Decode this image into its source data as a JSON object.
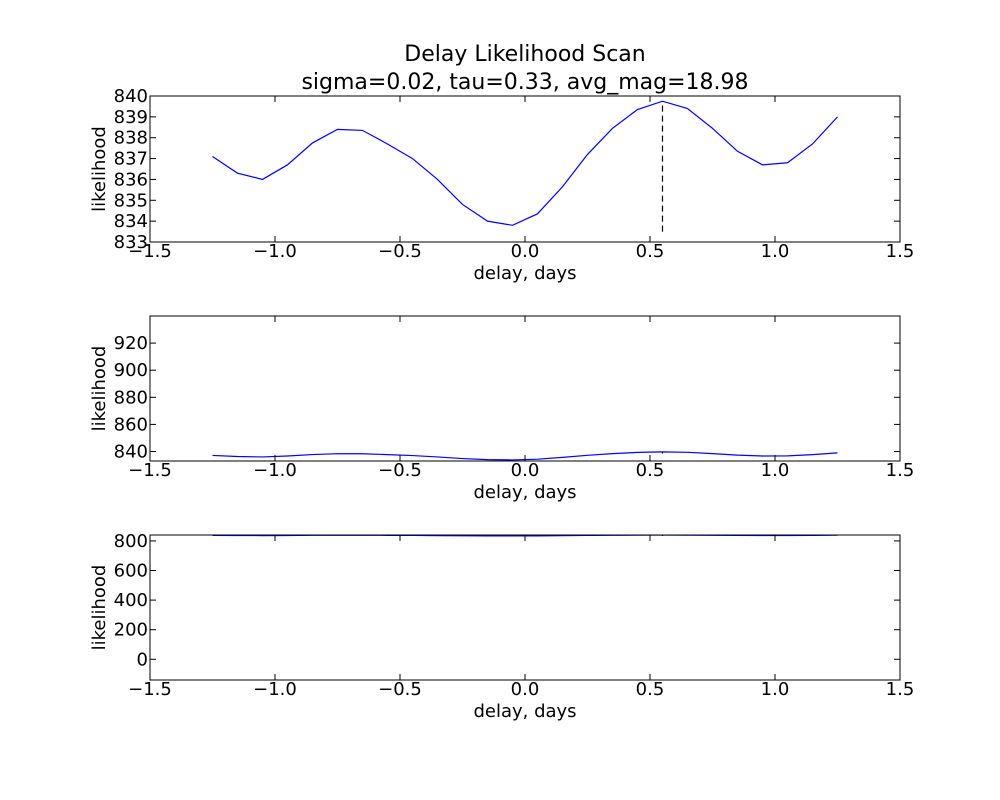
{
  "chart_data": {
    "type": "line",
    "title": "Delay Likelihood Scan",
    "subtitle": "sigma=0.02, tau=0.33, avg_mag=18.98",
    "x": [
      -1.25,
      -1.15,
      -1.05,
      -0.95,
      -0.85,
      -0.75,
      -0.65,
      -0.55,
      -0.45,
      -0.35,
      -0.25,
      -0.15,
      -0.05,
      0.05,
      0.15,
      0.25,
      0.35,
      0.45,
      0.55,
      0.65,
      0.75,
      0.85,
      0.95,
      1.05,
      1.15,
      1.25
    ],
    "series": [
      {
        "values": [
          837.1,
          836.3,
          836.0,
          836.7,
          837.75,
          838.4,
          838.35,
          837.7,
          837.0,
          836.0,
          834.8,
          834.0,
          833.8,
          834.35,
          835.65,
          837.2,
          838.45,
          839.35,
          839.75,
          839.4,
          838.45,
          837.35,
          836.7,
          836.8,
          837.7,
          839.0
        ]
      }
    ],
    "best_delay": 0.55,
    "color": "#0000ff",
    "panels": [
      {
        "xlabel": "delay, days",
        "ylabel": "likelihood",
        "xlim": [
          -1.5,
          1.5
        ],
        "ylim": [
          833,
          840
        ],
        "xticks": [
          "−1.5",
          "−1.0",
          "−0.5",
          "0.0",
          "0.5",
          "1.0",
          "1.5"
        ],
        "yticks": [
          "833",
          "834",
          "835",
          "836",
          "837",
          "838",
          "839",
          "840"
        ],
        "marker_from": 833.5
      },
      {
        "xlabel": "delay, days",
        "ylabel": "likelihood",
        "xlim": [
          -1.5,
          1.5
        ],
        "ylim": [
          833,
          940
        ],
        "xticks": [
          "−1.5",
          "−1.0",
          "−0.5",
          "0.0",
          "0.5",
          "1.0",
          "1.5"
        ],
        "yticks": [
          "840",
          "860",
          "880",
          "900",
          "920"
        ],
        "marker_from": 838.5
      },
      {
        "xlabel": "delay, days",
        "ylabel": "likelihood",
        "xlim": [
          -1.5,
          1.5
        ],
        "ylim": [
          -140,
          840
        ],
        "xticks": [
          "−1.5",
          "−1.0",
          "−0.5",
          "0.0",
          "0.5",
          "1.0",
          "1.5"
        ],
        "yticks": [
          "0",
          "200",
          "400",
          "600",
          "800"
        ],
        "marker_from": 833.5
      }
    ]
  }
}
